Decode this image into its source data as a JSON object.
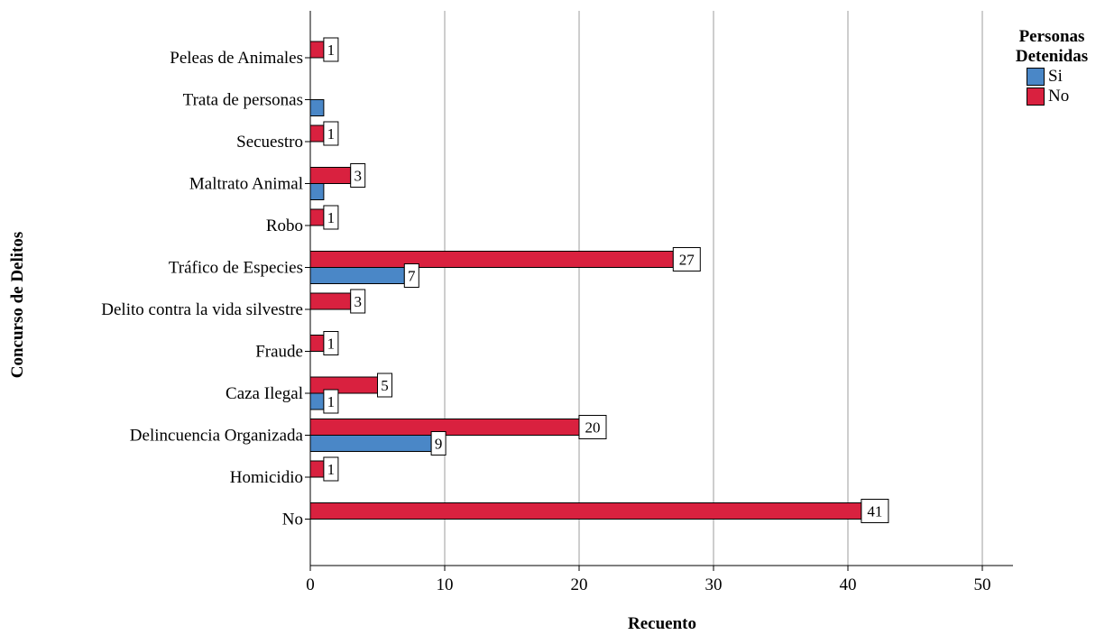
{
  "chart_data": {
    "type": "bar",
    "orientation": "horizontal",
    "title": "",
    "xlabel": "Recuento",
    "ylabel": "Concurso de Delitos",
    "xlim": [
      0,
      52
    ],
    "xticks": [
      "0",
      "10",
      "20",
      "30",
      "40",
      "50"
    ],
    "grid": "vertical",
    "legend": {
      "title_lines": [
        "Personas",
        "Detenidas"
      ],
      "position": "top-right",
      "entries": [
        "Si",
        "No"
      ]
    },
    "categories": [
      "Peleas de Animales",
      "Trata de personas",
      "Secuestro",
      "Maltrato Animal",
      "Robo",
      "Tráfico de Especies",
      "Delito contra la vida silvestre",
      "Fraude",
      "Caza Ilegal",
      "Delincuencia Organizada",
      "Homicidio",
      "No"
    ],
    "series": [
      {
        "name": "No",
        "color": "#d9213f",
        "values": [
          1,
          null,
          1,
          3,
          1,
          27,
          3,
          1,
          5,
          20,
          1,
          41
        ],
        "labels": [
          "1",
          null,
          "1",
          "3",
          "1",
          "27",
          "3",
          "1",
          "5",
          "20",
          "1",
          "41"
        ]
      },
      {
        "name": "Si",
        "color": "#4a87c7",
        "values": [
          null,
          1,
          null,
          1,
          null,
          7,
          null,
          null,
          1,
          9,
          null,
          null
        ],
        "labels": [
          null,
          null,
          null,
          null,
          null,
          "7",
          null,
          null,
          "1",
          "9",
          null,
          null
        ]
      }
    ]
  }
}
